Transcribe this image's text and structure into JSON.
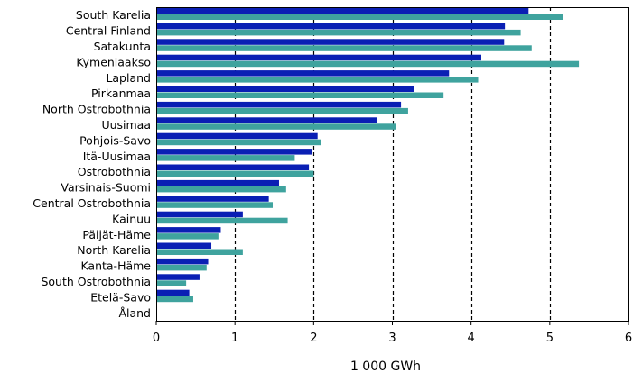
{
  "chart_data": {
    "type": "bar",
    "orientation": "horizontal",
    "title": "",
    "xlabel": "1 000 GWh",
    "ylabel": "",
    "xlim": [
      0,
      6
    ],
    "xticks": [
      0,
      1,
      2,
      3,
      4,
      5,
      6
    ],
    "grid": "vertical dashed lines at x = 1, 2, 3, 4, 5",
    "legend": "none",
    "categories": [
      "South Karelia",
      "Central Finland",
      "Satakunta",
      "Kymenlaakso",
      "Lapland",
      "Pirkanmaa",
      "North Ostrobothnia",
      "Uusimaa",
      "Pohjois-Savo",
      "Itä-Uusimaa",
      "Ostrobothnia",
      "Varsinais-Suomi",
      "Central Ostrobothnia",
      "Kainuu",
      "Päijät-Häme",
      "North Karelia",
      "Kanta-Häme",
      "South Ostrobothnia",
      "Etelä-Savo",
      "Åland"
    ],
    "series": [
      {
        "color": "#0a1fb4",
        "values": [
          4.73,
          4.43,
          4.42,
          4.13,
          3.72,
          3.27,
          3.11,
          2.81,
          2.05,
          1.98,
          1.94,
          1.56,
          1.43,
          1.1,
          0.82,
          0.7,
          0.66,
          0.55,
          0.42,
          0.0
        ]
      },
      {
        "color": "#3fa39e",
        "values": [
          5.17,
          4.63,
          4.77,
          5.37,
          4.09,
          3.65,
          3.2,
          3.05,
          2.09,
          1.76,
          2.0,
          1.65,
          1.48,
          1.67,
          0.79,
          1.1,
          0.64,
          0.38,
          0.47,
          0.0
        ]
      }
    ]
  }
}
